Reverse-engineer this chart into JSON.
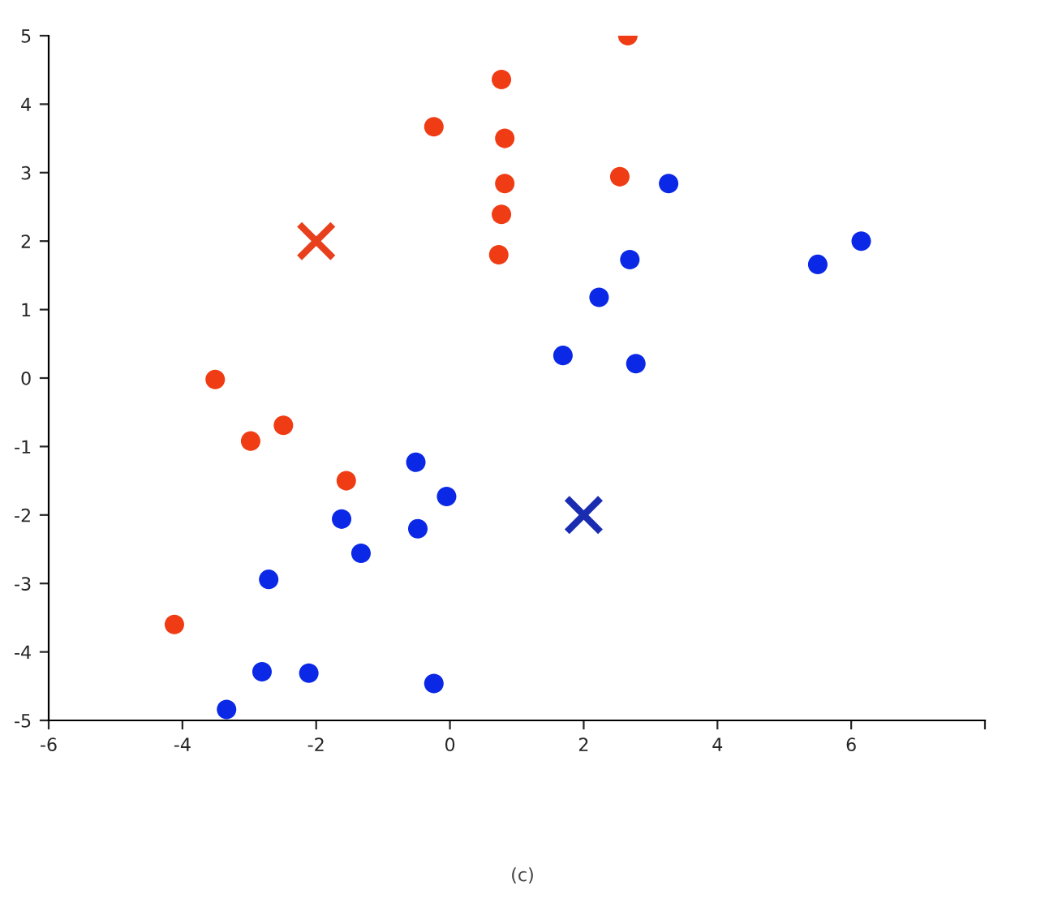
{
  "chart_data": {
    "type": "scatter",
    "xlim": [
      -6,
      8
    ],
    "ylim": [
      -5,
      5
    ],
    "xticks": [
      -6,
      -4,
      -2,
      0,
      2,
      4,
      6,
      {
        "value": 8,
        "label": null
      }
    ],
    "yticks": [
      -5,
      -4,
      -3,
      -2,
      -1,
      0,
      1,
      2,
      3,
      4,
      5
    ],
    "grid": false,
    "marker": "circle",
    "series": [
      {
        "color": "#f03c14",
        "x": [
          2.66,
          0.77,
          -0.24,
          0.82,
          2.54,
          0.82,
          0.77,
          0.73,
          -3.51,
          -2.98,
          -2.49,
          -1.55,
          -4.12
        ],
        "values": [
          5.0,
          4.36,
          3.67,
          3.5,
          2.94,
          2.84,
          2.39,
          1.8,
          -0.02,
          -0.92,
          -0.69,
          -1.5,
          -3.6
        ]
      },
      {
        "color": "#0a28e6",
        "x": [
          3.27,
          2.69,
          5.5,
          6.15,
          2.23,
          1.69,
          2.78,
          -0.51,
          -0.05,
          -1.62,
          -0.48,
          -1.33,
          -2.71,
          -2.81,
          -2.11,
          -0.24,
          -3.34
        ],
        "values": [
          2.84,
          1.73,
          1.66,
          2.0,
          1.18,
          0.33,
          0.21,
          -1.23,
          -1.73,
          -2.06,
          -2.2,
          -2.56,
          -2.94,
          -4.29,
          -4.31,
          -4.46,
          -4.84
        ]
      },
      {
        "color": "#e8401c",
        "marker": "cross",
        "x": [
          -2
        ],
        "values": [
          2
        ]
      },
      {
        "color": "#1a2db0",
        "marker": "cross",
        "x": [
          2
        ],
        "values": [
          -2
        ]
      }
    ],
    "annotations": [
      "(c)"
    ]
  }
}
